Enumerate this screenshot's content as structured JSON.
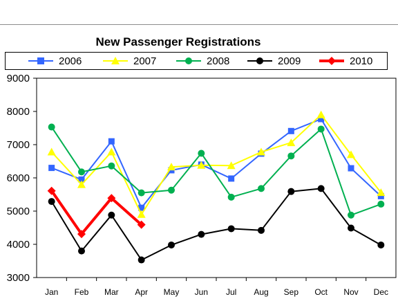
{
  "chart_data": {
    "type": "line",
    "title": "New Passenger Registrations",
    "xlabel": "",
    "ylabel": "",
    "categories": [
      "Jan",
      "Feb",
      "Mar",
      "Apr",
      "May",
      "Jun",
      "Jul",
      "Aug",
      "Sep",
      "Oct",
      "Nov",
      "Dec"
    ],
    "ylim": [
      3000,
      9000
    ],
    "yticks": [
      "3000",
      "4000",
      "5000",
      "6000",
      "7000",
      "8000",
      "9000"
    ],
    "grid": false,
    "legend_position": "top",
    "series": [
      {
        "name": "2006",
        "color": "#3366ff",
        "marker": "square",
        "values": [
          6300,
          5950,
          7100,
          5100,
          6230,
          6400,
          5980,
          6730,
          7410,
          7770,
          6290,
          5450
        ]
      },
      {
        "name": "2007",
        "color": "#ffff00",
        "marker": "triangle",
        "values": [
          6780,
          5800,
          6780,
          4900,
          6330,
          6380,
          6370,
          6780,
          7060,
          7900,
          6700,
          5560
        ]
      },
      {
        "name": "2008",
        "color": "#00b050",
        "marker": "circle",
        "values": [
          7530,
          6180,
          6360,
          5550,
          5630,
          6740,
          5420,
          5680,
          6660,
          7470,
          4880,
          5210
        ]
      },
      {
        "name": "2009",
        "color": "#000000",
        "marker": "circle",
        "values": [
          5290,
          3800,
          4880,
          3530,
          3980,
          4300,
          4470,
          4420,
          5590,
          5680,
          4490,
          3980
        ]
      },
      {
        "name": "2010",
        "color": "#ff0000",
        "marker": "diamond",
        "values": [
          5610,
          4310,
          5390,
          4590,
          null,
          null,
          null,
          null,
          null,
          null,
          null,
          null
        ]
      }
    ]
  }
}
